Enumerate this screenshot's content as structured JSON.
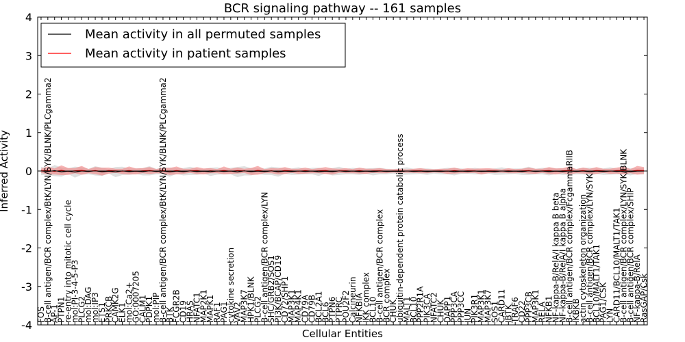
{
  "chart_data": {
    "type": "line",
    "title": "BCR signaling pathway -- 161 samples",
    "xlabel": "Cellular Entities",
    "ylabel": "Inferred Activity",
    "ylim": [
      -4,
      4
    ],
    "yticks": [
      "-4",
      "-3",
      "-2",
      "-1",
      "0",
      "1",
      "2",
      "3",
      "4"
    ],
    "legend_position": "top-left",
    "colors": {
      "permuted": "#000000",
      "patient": "#ff0000",
      "patient_band": "#f08080",
      "permuted_band": "#bbbbbb"
    },
    "series": [
      {
        "name": "Mean activity in all permuted samples",
        "baseline": -0.01,
        "band_halfwidth": 0.12
      },
      {
        "name": "Mean activity in patient samples",
        "baseline": 0.0,
        "band_halfwidth": 0.1
      }
    ],
    "x_labels": [
      "FOS",
      "B-cell antigen/BCR complex/BtK/LYN/SYK/BLNK/PLCgamma2",
      "AP-1",
      "PTPN1",
      "re-entry into mitotic cell cycle",
      "mol:PI-3-4-5-P3",
      "PLCG2",
      "mol:DAG",
      "mol:IP3",
      "ETS1",
      "PRKCB",
      "CAMK2G",
      "ELK1",
      "mol:Ca2+",
      "GO:0007205",
      "CALM1",
      "PDPK1",
      "mol:PIP",
      "B-cell antigen/BCR complex/BtK/LYN/SYK/BLNK/PLCgamma2",
      "BTK",
      "FCGR2B",
      "CD19",
      "HRAS",
      "NFATC1",
      "MAP2K1",
      "MAPK1",
      "RAF1",
      "PAG1",
      "cytokine secretion",
      "VAV2",
      "MAP3K7",
      "HPK1/BLNK",
      "PLCG2",
      "B-cell antigen/BCR complex/LYN",
      "SHC/GRB2/SOS1",
      "PI3K/BCAP/CD19",
      "CD72/SHP1",
      "MAP3K1",
      "MAP4K1",
      "CD79A",
      "CD79B",
      "BCL2A1",
      "BCL6",
      "PTPN6",
      "PTPRC",
      "POU2F2",
      "Calcineurin",
      "NFKBIA",
      "IKK complex",
      "BCL10",
      "B-cell antigen/BCR complex",
      "BCR complex",
      "CHUK",
      "ubiquitin-dependent protein catabolic process",
      "MALT1",
      "BCL10",
      "PPP2R1A",
      "PIK3CA",
      "NFATC2",
      "CHUK",
      "DAPP1",
      "PPP3CA",
      "PPP3CC",
      "JUN",
      "PIK3R1",
      "MAP3K1",
      "MAP3K7",
      "SOS1",
      "CARD11",
      "IBTK",
      "TRAF6",
      "CD22",
      "PPP3CB",
      "MAP3K1",
      "RELA",
      "NFKB1",
      "NF-kappa-B/RelA/I kappa B beta",
      "NF-kappa-B/RelA/I kappa B alpha",
      "B-cell antigen/BCR complex/FcgammaRIIB",
      "IKBKB",
      "actin cytoskeleton organization",
      "B-cell antigen/BCR complex/LYN/SYK",
      "BCL10/MALT1/TAK1",
      "PAG1/CSK",
      "LYN",
      "CARD11/BCL10/MALT1/TAK1",
      "B-cell antigen/BCR complex/LYN/SYK/BLNK",
      "B-cell antigen/BCR complex/SHIP",
      "NF-kappa-B/RelA",
      "RasGAP/Csk"
    ],
    "perm_variation": [
      0.05,
      -0.03,
      0.08,
      -0.06,
      0.02,
      -0.08,
      0.04,
      -0.02,
      0.06,
      -0.05,
      0.01,
      -0.07,
      0.05,
      -0.03,
      0.02,
      -0.04,
      0.06,
      -0.02,
      0.03,
      -0.06,
      0.02,
      -0.04,
      0.05,
      -0.03,
      0.01,
      -0.05,
      0.04,
      -0.02,
      0.03,
      -0.07,
      0.06,
      -0.04,
      0.02,
      -0.03,
      0.05,
      -0.06,
      0.02,
      -0.03,
      0.04,
      -0.02,
      0.03,
      -0.05,
      0.01,
      -0.04,
      0.05,
      -0.02,
      0.03,
      -0.03,
      0.02,
      -0.04,
      0.03,
      -0.02,
      0.01,
      -0.03,
      0.04,
      -0.02,
      0.02,
      -0.03,
      0.01,
      -0.02,
      0.03,
      -0.04,
      0.02,
      -0.01,
      0.03,
      -0.02,
      0.01,
      -0.03,
      0.04,
      -0.02,
      0.02,
      -0.03,
      0.05,
      -0.02,
      0.03,
      -0.04,
      0.02,
      -0.03,
      0.04,
      -0.02,
      0.03,
      -0.05,
      0.02,
      -0.03,
      0.04,
      -0.02,
      0.03,
      -0.04,
      0.02,
      0.03
    ],
    "patient_variation": [
      0.02,
      0.06,
      -0.04,
      0.08,
      -0.05,
      0.03,
      0.07,
      -0.02,
      0.05,
      -0.06,
      0.04,
      0.02,
      -0.03,
      0.06,
      -0.04,
      0.03,
      0.05,
      -0.02,
      0.04,
      -0.05,
      0.06,
      -0.03,
      0.02,
      0.05,
      -0.04,
      0.03,
      -0.02,
      0.06,
      -0.03,
      0.04,
      0.02,
      -0.05,
      0.07,
      -0.02,
      0.03,
      -0.04,
      0.05,
      0.02,
      -0.03,
      0.04,
      -0.02,
      0.03,
      0.05,
      -0.04,
      0.02,
      0.03,
      -0.02,
      0.04,
      -0.03,
      0.02,
      0.03,
      -0.02,
      0.01,
      0.02,
      -0.01,
      0.02,
      0.03,
      -0.02,
      0.01,
      0.02,
      -0.03,
      0.04,
      -0.02,
      0.03,
      0.02,
      -0.04,
      0.03,
      0.02,
      -0.01,
      0.03,
      -0.02,
      0.02,
      0.04,
      -0.03,
      0.02,
      0.05,
      -0.04,
      0.03,
      0.06,
      -0.02,
      0.04,
      -0.03,
      0.05,
      0.02,
      -0.03,
      0.04,
      0.06,
      -0.02,
      0.07,
      0.05
    ]
  }
}
